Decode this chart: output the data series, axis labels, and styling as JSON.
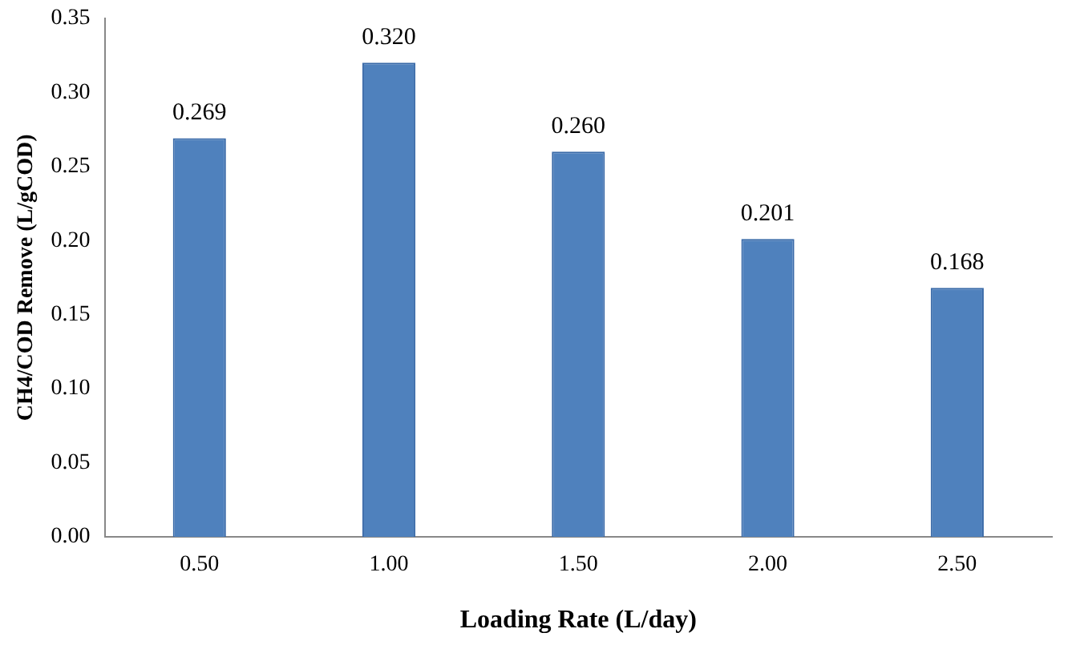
{
  "chart_data": {
    "type": "bar",
    "xlabel": "Loading Rate (L/day)",
    "ylabel": "CH4/COD Remove (L/gCOD)",
    "categories": [
      "0.50",
      "1.00",
      "1.50",
      "2.00",
      "2.50"
    ],
    "values": [
      0.269,
      0.32,
      0.26,
      0.201,
      0.168
    ],
    "value_labels": [
      "0.269",
      "0.320",
      "0.260",
      "0.201",
      "0.168"
    ],
    "color": "#4f81bd",
    "ylim": [
      0,
      0.35
    ],
    "yticks": [
      {
        "value": 0,
        "label": "0.00"
      },
      {
        "value": 0.05,
        "label": "0.05"
      },
      {
        "value": 0.1,
        "label": "0.10"
      },
      {
        "value": 0.15,
        "label": "0.15"
      },
      {
        "value": 0.2,
        "label": "0.20"
      },
      {
        "value": 0.25,
        "label": "0.25"
      },
      {
        "value": 0.3,
        "label": "0.30"
      },
      {
        "value": 0.35,
        "label": "0.35"
      }
    ],
    "grid": false,
    "legend": false
  }
}
